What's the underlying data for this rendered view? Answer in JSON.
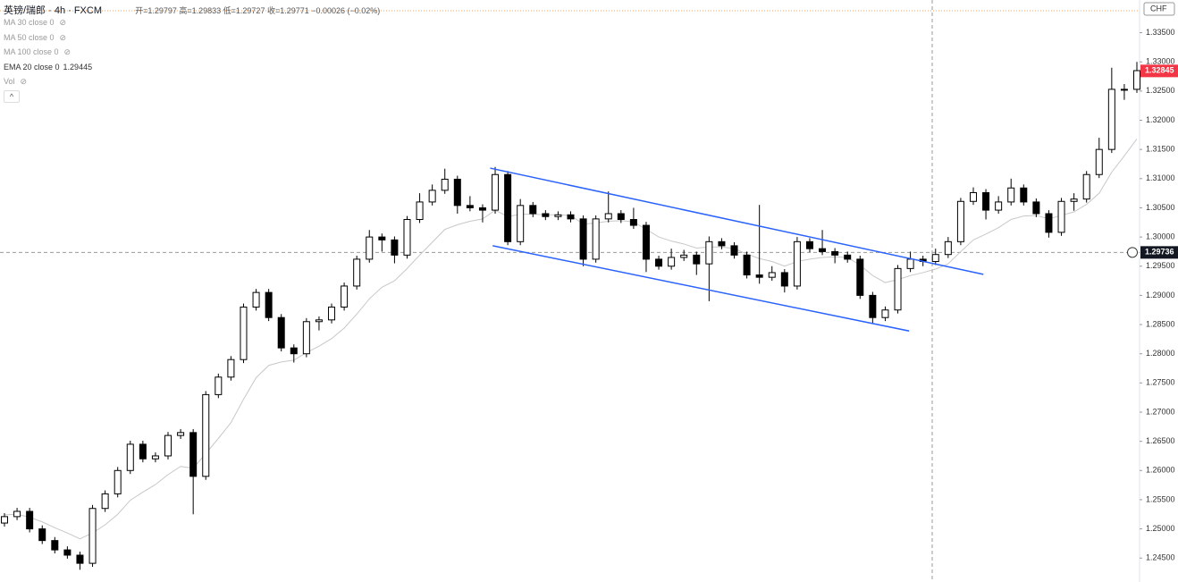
{
  "header": {
    "title": "英镑/瑞郎 · 4h · FXCM",
    "ohlc_text": "开=1.29797 高=1.29833 低=1.29727 收=1.29771 −0.00026 (−0.02%)",
    "indicators": [
      {
        "name": "MA 30 close 0"
      },
      {
        "name": "MA 50 close 0"
      },
      {
        "name": "MA 100 close 0"
      },
      {
        "name": "EMA 20 close 0",
        "value": 1.29445
      },
      {
        "name": "Vol"
      }
    ]
  },
  "chart_data": {
    "type": "candlestick",
    "currency": "CHF",
    "up_color": "#ffffff",
    "down_color": "#000000",
    "ema_color": "#c8c8c8",
    "trendline_color": "#2962ff",
    "ylim": [
      1.2409,
      1.3406
    ],
    "yticks": [
      {
        "value": 1.245,
        "label": "1.24500"
      },
      {
        "value": 1.25,
        "label": "1.25000"
      },
      {
        "value": 1.255,
        "label": "1.25500"
      },
      {
        "value": 1.26,
        "label": "1.26000"
      },
      {
        "value": 1.265,
        "label": "1.26500"
      },
      {
        "value": 1.27,
        "label": "1.27000"
      },
      {
        "value": 1.275,
        "label": "1.27500"
      },
      {
        "value": 1.28,
        "label": "1.28000"
      },
      {
        "value": 1.285,
        "label": "1.28500"
      },
      {
        "value": 1.29,
        "label": "1.29000"
      },
      {
        "value": 1.295,
        "label": "1.29500"
      },
      {
        "value": 1.3,
        "label": "1.30000"
      },
      {
        "value": 1.305,
        "label": "1.30500"
      },
      {
        "value": 1.31,
        "label": "1.31000"
      },
      {
        "value": 1.315,
        "label": "1.31500"
      },
      {
        "value": 1.32,
        "label": "1.32000"
      },
      {
        "value": 1.325,
        "label": "1.32500"
      },
      {
        "value": 1.33,
        "label": "1.33000"
      },
      {
        "value": 1.335,
        "label": "1.33500"
      }
    ],
    "last_price": 1.32845,
    "crosshair_price": 1.29736,
    "open": [
      1.251,
      1.2521,
      1.253,
      1.25,
      1.248,
      1.2464,
      1.2455,
      1.2441,
      1.2535,
      1.256,
      1.26,
      1.2645,
      1.262,
      1.2625,
      1.266,
      1.2665,
      1.259,
      1.273,
      1.276,
      1.279,
      1.288,
      1.2905,
      1.2862,
      1.281,
      1.28,
      1.2855,
      1.2858,
      1.288,
      1.2916,
      1.2962,
      1.3,
      1.2995,
      1.2969,
      1.303,
      1.306,
      1.308,
      1.3099,
      1.3054,
      1.305,
      1.3046,
      1.3107,
      1.2992,
      1.3054,
      1.304,
      1.3035,
      1.3038,
      1.3031,
      1.2962,
      1.3031,
      1.304,
      1.303,
      1.302,
      1.2962,
      1.295,
      1.2965,
      1.2969,
      1.2954,
      1.2992,
      1.2985,
      1.2969,
      1.2935,
      1.2931,
      1.2939,
      1.2916,
      1.2992,
      1.298,
      1.2975,
      1.2969,
      1.2962,
      1.29,
      1.2862,
      1.2875,
      1.2946,
      1.2962,
      1.2958,
      1.297,
      1.2992,
      1.3061,
      1.3076,
      1.3046,
      1.306,
      1.3084,
      1.306,
      1.304,
      1.3008,
      1.3061,
      1.3065,
      1.3107,
      1.315,
      1.3253,
      1.3253
    ],
    "high": [
      1.2527,
      1.2536,
      1.2536,
      1.2506,
      1.2486,
      1.247,
      1.2461,
      1.2541,
      1.2566,
      1.2606,
      1.2651,
      1.2651,
      1.2631,
      1.2666,
      1.2671,
      1.2671,
      1.2736,
      1.2766,
      1.2796,
      1.2886,
      1.2911,
      1.2911,
      1.2868,
      1.2816,
      1.2861,
      1.2864,
      1.2886,
      1.2922,
      1.2968,
      1.3012,
      1.3006,
      1.3001,
      1.3036,
      1.3075,
      1.309,
      1.3117,
      1.3105,
      1.307,
      1.3056,
      1.312,
      1.3113,
      1.3065,
      1.306,
      1.3046,
      1.3044,
      1.3044,
      1.3037,
      1.3037,
      1.3078,
      1.3046,
      1.305,
      1.3026,
      1.2968,
      1.298,
      1.2978,
      1.2975,
      1.3001,
      1.2998,
      1.2991,
      1.2975,
      1.3055,
      1.295,
      1.2945,
      1.3,
      1.2998,
      1.3012,
      1.2981,
      1.2975,
      1.2968,
      1.2906,
      1.2881,
      1.2952,
      1.2975,
      1.2968,
      1.298,
      1.3,
      1.3067,
      1.3085,
      1.3082,
      1.307,
      1.31,
      1.309,
      1.3066,
      1.3046,
      1.3067,
      1.3075,
      1.3113,
      1.317,
      1.329,
      1.3262,
      1.33
    ],
    "low": [
      1.2504,
      1.2515,
      1.2494,
      1.2474,
      1.2458,
      1.2449,
      1.243,
      1.2435,
      1.2529,
      1.2554,
      1.2594,
      1.2614,
      1.2614,
      1.2619,
      1.2654,
      1.2525,
      1.2584,
      1.2724,
      1.2754,
      1.2784,
      1.2874,
      1.2856,
      1.2804,
      1.2785,
      1.2794,
      1.284,
      1.2852,
      1.2874,
      1.291,
      1.2956,
      1.2975,
      1.2955,
      1.2963,
      1.3024,
      1.3054,
      1.3074,
      1.304,
      1.3044,
      1.3025,
      1.304,
      1.2986,
      1.2986,
      1.3034,
      1.3029,
      1.3029,
      1.3025,
      1.295,
      1.2956,
      1.3025,
      1.3024,
      1.3014,
      1.294,
      1.2944,
      1.2944,
      1.2959,
      1.2935,
      1.289,
      1.2979,
      1.2963,
      1.2929,
      1.292,
      1.2925,
      1.2905,
      1.291,
      1.2974,
      1.2969,
      1.2955,
      1.2956,
      1.2894,
      1.2852,
      1.2856,
      1.2869,
      1.294,
      1.295,
      1.2952,
      1.2964,
      1.2986,
      1.3055,
      1.303,
      1.304,
      1.3054,
      1.3054,
      1.3034,
      1.2999,
      1.3002,
      1.3045,
      1.3059,
      1.3101,
      1.3144,
      1.3235,
      1.3247
    ],
    "close": [
      1.2521,
      1.253,
      1.25,
      1.248,
      1.2464,
      1.2455,
      1.2441,
      1.2535,
      1.256,
      1.26,
      1.2645,
      1.262,
      1.2625,
      1.266,
      1.2665,
      1.259,
      1.273,
      1.276,
      1.279,
      1.288,
      1.2905,
      1.2862,
      1.281,
      1.28,
      1.2855,
      1.2858,
      1.288,
      1.2916,
      1.2962,
      1.3,
      1.2995,
      1.2969,
      1.303,
      1.306,
      1.308,
      1.3099,
      1.3054,
      1.305,
      1.3046,
      1.3107,
      1.2992,
      1.3054,
      1.304,
      1.3035,
      1.3038,
      1.3031,
      1.2962,
      1.3031,
      1.304,
      1.303,
      1.302,
      1.2962,
      1.295,
      1.2965,
      1.2969,
      1.2954,
      1.2992,
      1.2985,
      1.2969,
      1.2935,
      1.2931,
      1.2939,
      1.2916,
      1.2992,
      1.298,
      1.2975,
      1.2969,
      1.2962,
      1.29,
      1.2862,
      1.2875,
      1.2946,
      1.2962,
      1.2958,
      1.297,
      1.2992,
      1.3061,
      1.3076,
      1.3046,
      1.306,
      1.3084,
      1.306,
      1.304,
      1.3008,
      1.3061,
      1.3065,
      1.3107,
      1.315,
      1.3253,
      1.3253,
      1.3285
    ],
    "ema": [
      1.2524,
      1.2525,
      1.252,
      1.2512,
      1.2502,
      1.2493,
      1.2483,
      1.2493,
      1.2507,
      1.2525,
      1.2549,
      1.2563,
      1.2576,
      1.2593,
      1.2607,
      1.2604,
      1.2629,
      1.2655,
      1.2682,
      1.2722,
      1.2759,
      1.278,
      1.2786,
      1.2789,
      1.2802,
      1.2813,
      1.2826,
      1.2844,
      1.2868,
      1.2894,
      1.2914,
      1.2925,
      1.2946,
      1.2969,
      1.2991,
      1.3013,
      1.3021,
      1.3027,
      1.3031,
      1.3046,
      1.3035,
      1.3039,
      1.3039,
      1.3038,
      1.3038,
      1.3037,
      1.3022,
      1.3024,
      1.3027,
      1.3028,
      1.3026,
      1.3013,
      1.3,
      1.2993,
      1.2988,
      1.2981,
      1.2983,
      1.2983,
      1.298,
      1.2971,
      1.2963,
      1.2958,
      1.295,
      1.2958,
      1.2962,
      1.2965,
      1.2966,
      1.2965,
      1.2952,
      1.2934,
      1.2922,
      1.2927,
      1.2934,
      1.2939,
      1.2945,
      1.2954,
      1.2975,
      1.2995,
      1.3005,
      1.3016,
      1.303,
      1.3036,
      1.3037,
      1.3031,
      1.3037,
      1.3043,
      1.3056,
      1.3075,
      1.3111,
      1.3139,
      1.3168
    ],
    "trendlines": [
      {
        "x": [
          38.6,
          77.8
        ],
        "y": [
          1.3118,
          1.2936
        ]
      },
      {
        "x": [
          38.8,
          71.9
        ],
        "y": [
          1.2985,
          1.2839
        ]
      }
    ]
  }
}
